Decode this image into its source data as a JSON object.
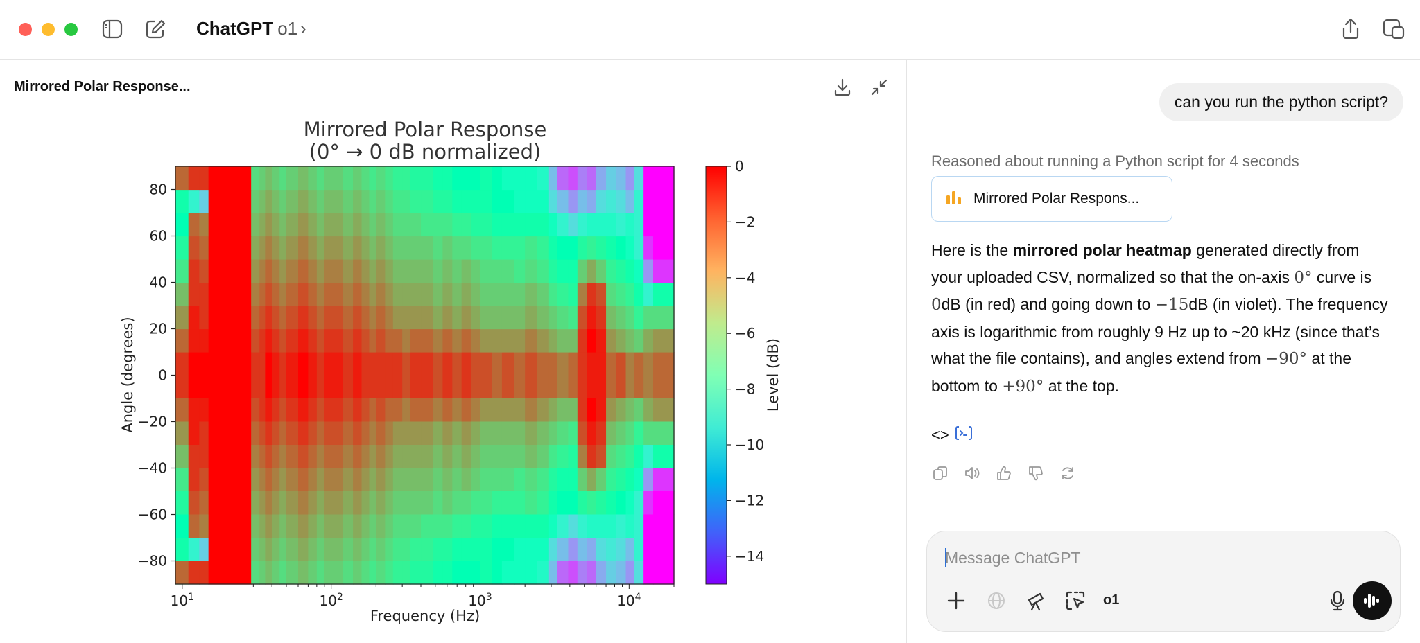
{
  "window": {
    "app_name": "ChatGPT",
    "model": "o1",
    "model_chevron": "›"
  },
  "canvas_panel": {
    "document_title": "Mirrored Polar Response..."
  },
  "chat": {
    "user_message": "can you run the python script?",
    "reasoning_note": "Reasoned about running a Python script for 4 seconds",
    "artifact_label": "Mirrored Polar Respons...",
    "answer": {
      "p1": "Here is the ",
      "p1_bold": "mirrored polar heatmap",
      "p2": " generated directly from your uploaded CSV, normalized so that the on-axis ",
      "m1": "0°",
      "p3": " curve is ",
      "m2": "0",
      "p4": "dB (in red) and going down to ",
      "m3": "−15",
      "p5": "dB (in violet). The frequency axis is logarithmic from roughly 9 Hz up to ~20 kHz (since that’s what the file contains), and angles extend from ",
      "m4": "−90°",
      "p6": " at the bottom to ",
      "m5": "+90°",
      "p7": " at the top."
    },
    "code_toggle": "<>",
    "composer_placeholder": "Message ChatGPT",
    "composer_model": "o1"
  },
  "icons": {
    "sidebar": "sidebar-icon",
    "new_chat": "compose-icon",
    "share": "share-icon",
    "window_mode": "window-mode-icon",
    "download": "download-icon",
    "collapse": "collapse-icon",
    "chart": "bar-chart-icon",
    "copy": "copy-icon",
    "read_aloud": "speaker-icon",
    "thumbs_up": "thumbs-up-icon",
    "thumbs_down": "thumbs-down-icon",
    "regenerate": "regenerate-icon",
    "plus": "plus-icon",
    "globe": "globe-icon",
    "telescope": "telescope-icon",
    "select": "cursor-select-icon",
    "mic": "microphone-icon",
    "voice": "voice-mode-icon"
  },
  "colors": {
    "traffic_red": "#ff5f57",
    "traffic_yellow": "#febc2e",
    "traffic_green": "#28c840",
    "artifact_border": "#b9d7f2",
    "chart_icon": "#f5a623"
  },
  "chart_data": {
    "type": "heatmap",
    "title": "Mirrored Polar Response",
    "subtitle": "(0° → 0 dB normalized)",
    "xlabel": "Frequency (Hz)",
    "ylabel": "Angle (degrees)",
    "colorbar_label": "Level (dB)",
    "x_scale": "log",
    "xlim": [
      9,
      20000
    ],
    "ylim": [
      -90,
      90
    ],
    "x_ticks": [
      {
        "value": 10,
        "base": "10",
        "exp": "1"
      },
      {
        "value": 100,
        "base": "10",
        "exp": "2"
      },
      {
        "value": 1000,
        "base": "10",
        "exp": "3"
      },
      {
        "value": 10000,
        "base": "10",
        "exp": "4"
      }
    ],
    "y_ticks": [
      {
        "value": 80,
        "label": "80"
      },
      {
        "value": 60,
        "label": "60"
      },
      {
        "value": 40,
        "label": "40"
      },
      {
        "value": 20,
        "label": "20"
      },
      {
        "value": 0,
        "label": "0"
      },
      {
        "value": -20,
        "label": "−20"
      },
      {
        "value": -40,
        "label": "−40"
      },
      {
        "value": -60,
        "label": "−60"
      },
      {
        "value": -80,
        "label": "−80"
      }
    ],
    "colorbar_ticks": [
      {
        "value": 0,
        "label": "0"
      },
      {
        "value": -2,
        "label": "−2"
      },
      {
        "value": -4,
        "label": "−4"
      },
      {
        "value": -6,
        "label": "−6"
      },
      {
        "value": -8,
        "label": "−8"
      },
      {
        "value": -10,
        "label": "−10"
      },
      {
        "value": -12,
        "label": "−12"
      },
      {
        "value": -14,
        "label": "−14"
      }
    ],
    "clim": [
      -15,
      0
    ],
    "colormap": "rainbow",
    "angles_half": [
      0,
      10,
      20,
      30,
      40,
      50,
      60,
      70,
      80,
      90
    ],
    "freq_edges": [
      9,
      11,
      13,
      15,
      29,
      33,
      36,
      40,
      45,
      50,
      60,
      70,
      80,
      90,
      100,
      120,
      140,
      160,
      180,
      200,
      230,
      260,
      300,
      340,
      400,
      480,
      560,
      650,
      750,
      870,
      1000,
      1200,
      1400,
      1700,
      2000,
      2400,
      2900,
      3300,
      3900,
      4500,
      5200,
      6000,
      7000,
      8200,
      9500,
      10800,
      12500,
      14500,
      20000
    ],
    "levels_dB": [
      [
        0,
        0,
        0,
        0,
        0,
        0,
        0,
        0,
        0,
        0,
        0,
        0,
        0,
        0,
        0,
        0,
        0,
        0,
        0,
        0,
        0,
        0,
        0,
        0,
        0,
        0,
        0,
        0,
        0,
        0,
        0,
        0,
        0,
        0,
        0,
        0,
        0,
        0,
        0,
        0,
        0,
        0,
        0,
        0,
        0,
        0,
        0,
        0
      ],
      [
        -1,
        0,
        0,
        0,
        -1,
        -1,
        0,
        -0.5,
        -1,
        -0.5,
        0,
        -0.5,
        -1,
        -0.5,
        -0.5,
        -1,
        -0.5,
        -1,
        -1,
        -1,
        -1,
        -1,
        -1.5,
        -1,
        -1,
        -1.5,
        -1,
        -1.5,
        -1,
        -1.5,
        -1.5,
        -2,
        -1.5,
        -2,
        -1.5,
        -2,
        -2,
        -2.5,
        -2,
        -1,
        -0.5,
        -0.5,
        -2,
        -1.5,
        -2.5,
        -2,
        -2.5,
        -2
      ],
      [
        -2,
        -0.5,
        -0.5,
        0,
        -1.5,
        -1,
        -0.5,
        -1,
        -1.5,
        -1,
        -0.5,
        -1,
        -1.5,
        -1,
        -1,
        -1.5,
        -1,
        -1.5,
        -2,
        -1.5,
        -2,
        -2,
        -2.5,
        -2,
        -2,
        -2.5,
        -2,
        -2.5,
        -2,
        -2.5,
        -3,
        -3,
        -3,
        -3,
        -2.5,
        -3,
        -3.5,
        -4,
        -4,
        -1,
        0,
        -0.5,
        -3,
        -3.5,
        -4,
        -4.5,
        -3.5,
        -3
      ],
      [
        -3,
        -0.5,
        -1,
        0,
        -2,
        -1.5,
        -1,
        -1.5,
        -2,
        -1.5,
        -1,
        -1.5,
        -2,
        -1.5,
        -1.5,
        -2,
        -1.5,
        -2,
        -2.5,
        -2,
        -2.5,
        -3,
        -3,
        -3,
        -3,
        -3.5,
        -3,
        -3.5,
        -3,
        -3.5,
        -4,
        -4,
        -4,
        -4,
        -3.5,
        -4,
        -4.5,
        -5,
        -5.5,
        -1.5,
        -0.5,
        -1,
        -4,
        -4.5,
        -5,
        -6,
        -5,
        -5
      ],
      [
        -4,
        -1,
        -1,
        0,
        -2.5,
        -2,
        -1.5,
        -2,
        -2.5,
        -2,
        -1.5,
        -2,
        -2.5,
        -2,
        -2,
        -2.5,
        -2,
        -2.5,
        -3,
        -2.5,
        -3,
        -3.5,
        -3.5,
        -3.5,
        -3.5,
        -4,
        -3.5,
        -4,
        -3.5,
        -4,
        -4.5,
        -4.5,
        -4.5,
        -4.5,
        -4,
        -4.5,
        -5.5,
        -6,
        -6.5,
        -2.5,
        -1,
        -1.5,
        -5,
        -5.5,
        -6,
        -7,
        -9,
        -7
      ],
      [
        -5.5,
        -1,
        -1.5,
        0,
        -3,
        -2.5,
        -2,
        -2.5,
        -3,
        -2.5,
        -2,
        -2.5,
        -3,
        -2.5,
        -2.5,
        -3,
        -2.5,
        -3,
        -3.5,
        -3,
        -3.5,
        -4,
        -4,
        -4,
        -4,
        -4.5,
        -4,
        -4.5,
        -4,
        -4.5,
        -5,
        -5,
        -5,
        -5.5,
        -5,
        -5.5,
        -6.5,
        -7,
        -7,
        -4.5,
        -3.5,
        -4.5,
        -6,
        -6.5,
        -7,
        -8,
        -12,
        -14
      ],
      [
        -6.5,
        -1.5,
        -2,
        0,
        -3.5,
        -3,
        -2.5,
        -3,
        -3.5,
        -3,
        -2.5,
        -3,
        -3.5,
        -3,
        -3,
        -3.5,
        -3,
        -3.5,
        -4,
        -3.5,
        -4,
        -4.5,
        -4.5,
        -4.5,
        -4.5,
        -5,
        -4.5,
        -5,
        -5,
        -5.5,
        -5.5,
        -6,
        -6,
        -6,
        -5.5,
        -6,
        -7,
        -7.5,
        -7.5,
        -6.5,
        -6,
        -6.5,
        -7,
        -7.5,
        -8,
        -9,
        -14,
        -15
      ],
      [
        -7.5,
        -2,
        -2.5,
        0,
        -4,
        -3.5,
        -3,
        -3.5,
        -4,
        -3.5,
        -3,
        -3.5,
        -4,
        -3.5,
        -3.5,
        -4,
        -3.5,
        -4,
        -4.5,
        -4,
        -4.5,
        -5,
        -5,
        -5,
        -5.5,
        -5.5,
        -5.5,
        -6,
        -6,
        -6.5,
        -6.5,
        -7,
        -7,
        -7,
        -7,
        -7,
        -8,
        -9,
        -10,
        -9,
        -8.5,
        -8.5,
        -8.5,
        -9,
        -8.5,
        -9,
        -15,
        -15
      ],
      [
        -7,
        -9,
        -10.5,
        0,
        -4.5,
        -4,
        -3.5,
        -4,
        -4.5,
        -4,
        -3.5,
        -4,
        -4.5,
        -4,
        -4,
        -4.5,
        -4,
        -4.5,
        -5,
        -4.5,
        -5,
        -5.5,
        -5.5,
        -6,
        -6,
        -6.5,
        -6.5,
        -7,
        -7,
        -7,
        -7,
        -7.5,
        -7.5,
        -8,
        -8,
        -8,
        -10,
        -11,
        -12,
        -11,
        -11.5,
        -10,
        -9.5,
        -10,
        -11,
        -9,
        -15,
        -15
      ],
      [
        -2,
        -1,
        -1,
        0,
        -5,
        -4.5,
        -4,
        -4.5,
        -5,
        -4.5,
        -4,
        -4.5,
        -5,
        -4.5,
        -4.5,
        -5,
        -4.5,
        -5,
        -5.5,
        -5,
        -5.5,
        -6,
        -6,
        -6.5,
        -6.5,
        -7,
        -7,
        -7.5,
        -7.5,
        -7.5,
        -7,
        -7.5,
        -8,
        -8,
        -8,
        -8.5,
        -11,
        -13,
        -13.5,
        -12.5,
        -13,
        -11.5,
        -10.5,
        -11,
        -12,
        -10,
        -15,
        -15
      ]
    ]
  }
}
